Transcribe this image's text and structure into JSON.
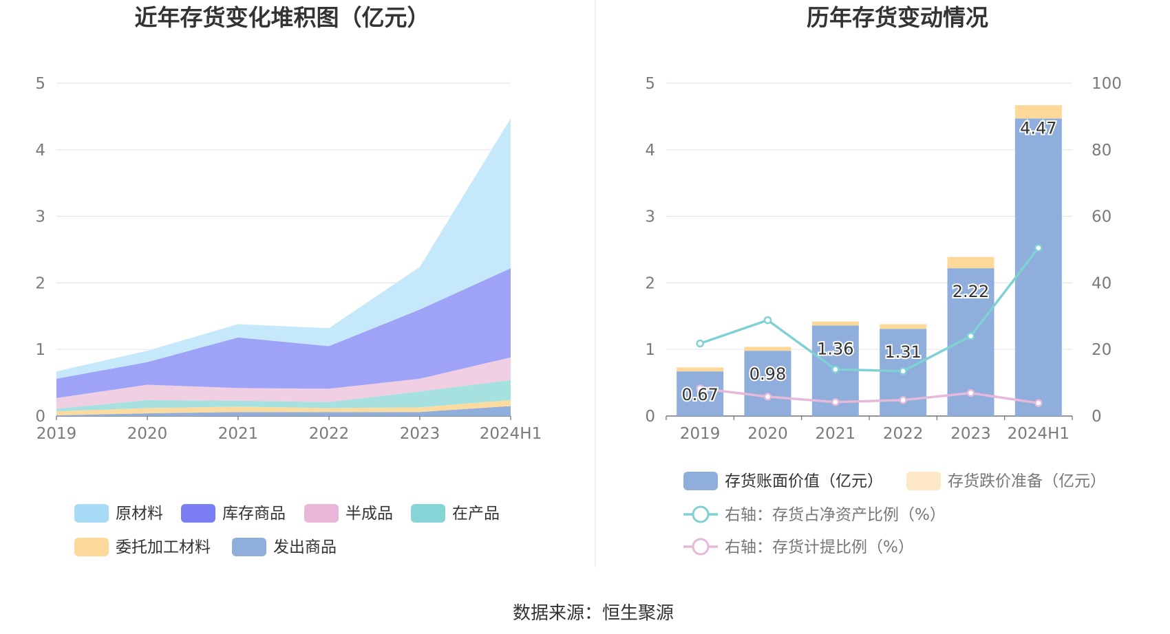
{
  "source": "数据来源：恒生聚源",
  "chart_data": [
    {
      "type": "area",
      "title": "近年存货变化堆积图（亿元）",
      "categories": [
        "2019",
        "2020",
        "2021",
        "2022",
        "2023",
        "2024H1"
      ],
      "ylim": [
        0,
        5
      ],
      "yticks": [
        "0",
        "1",
        "2",
        "3",
        "4",
        "5"
      ],
      "stacked": true,
      "grid": true,
      "legend_position": "bottom",
      "series": [
        {
          "name": "发出商品",
          "color": "#8faedc",
          "values": [
            0.01,
            0.04,
            0.06,
            0.06,
            0.06,
            0.15
          ]
        },
        {
          "name": "委托加工材料",
          "color": "#fcdba0",
          "values": [
            0.06,
            0.08,
            0.08,
            0.06,
            0.07,
            0.09
          ]
        },
        {
          "name": "在产品",
          "color": "#a6e1e0",
          "values": [
            0.04,
            0.12,
            0.09,
            0.09,
            0.24,
            0.3
          ]
        },
        {
          "name": "半成品",
          "color": "#f0cfe3",
          "values": [
            0.16,
            0.23,
            0.19,
            0.2,
            0.19,
            0.34
          ]
        },
        {
          "name": "库存商品",
          "color": "#9fa3f8",
          "values": [
            0.29,
            0.34,
            0.76,
            0.64,
            1.04,
            1.34
          ]
        },
        {
          "name": "原材料",
          "color": "#c5e8fa",
          "values": [
            0.11,
            0.17,
            0.2,
            0.27,
            0.64,
            2.25
          ]
        }
      ],
      "legend": [
        {
          "name": "原材料",
          "color": "#a8dcf6"
        },
        {
          "name": "库存商品",
          "color": "#7b7ef2"
        },
        {
          "name": "半成品",
          "color": "#e8b7d8"
        },
        {
          "name": "在产品",
          "color": "#85d5d6"
        },
        {
          "name": "委托加工材料",
          "color": "#fcd99b"
        },
        {
          "name": "发出商品",
          "color": "#8faedc"
        }
      ]
    },
    {
      "type": "bar",
      "title": "历年存货变动情况",
      "categories": [
        "2019",
        "2020",
        "2021",
        "2022",
        "2023",
        "2024H1"
      ],
      "ylim": [
        0,
        5
      ],
      "yticks": [
        "0",
        "1",
        "2",
        "3",
        "4",
        "5"
      ],
      "y2lim": [
        0,
        100
      ],
      "y2ticks": [
        "0",
        "20",
        "40",
        "60",
        "80",
        "100"
      ],
      "grid": true,
      "legend_position": "bottom",
      "bars": [
        {
          "name": "存货账面价值（亿元）",
          "color": "#8faedc",
          "values": [
            0.67,
            0.98,
            1.36,
            1.31,
            2.22,
            4.47
          ],
          "labels": [
            "0.67",
            "0.98",
            "1.36",
            "1.31",
            "2.22",
            "4.47"
          ]
        },
        {
          "name": "存货跌价准备（亿元）",
          "color": "#fcd99b",
          "legend_color": "#fde7c4",
          "values": [
            0.06,
            0.06,
            0.06,
            0.07,
            0.17,
            0.2
          ]
        }
      ],
      "lines": [
        {
          "name": "右轴：存货占净资产比例（%）",
          "color": "#7fd1d3",
          "axis": "right",
          "values": [
            21.8,
            28.8,
            14.0,
            13.5,
            24.0,
            50.5
          ]
        },
        {
          "name": "右轴：存货计提比例（%）",
          "color": "#e6b8d9",
          "axis": "right",
          "values": [
            8.3,
            5.8,
            4.2,
            4.8,
            6.9,
            3.9
          ]
        }
      ]
    }
  ]
}
